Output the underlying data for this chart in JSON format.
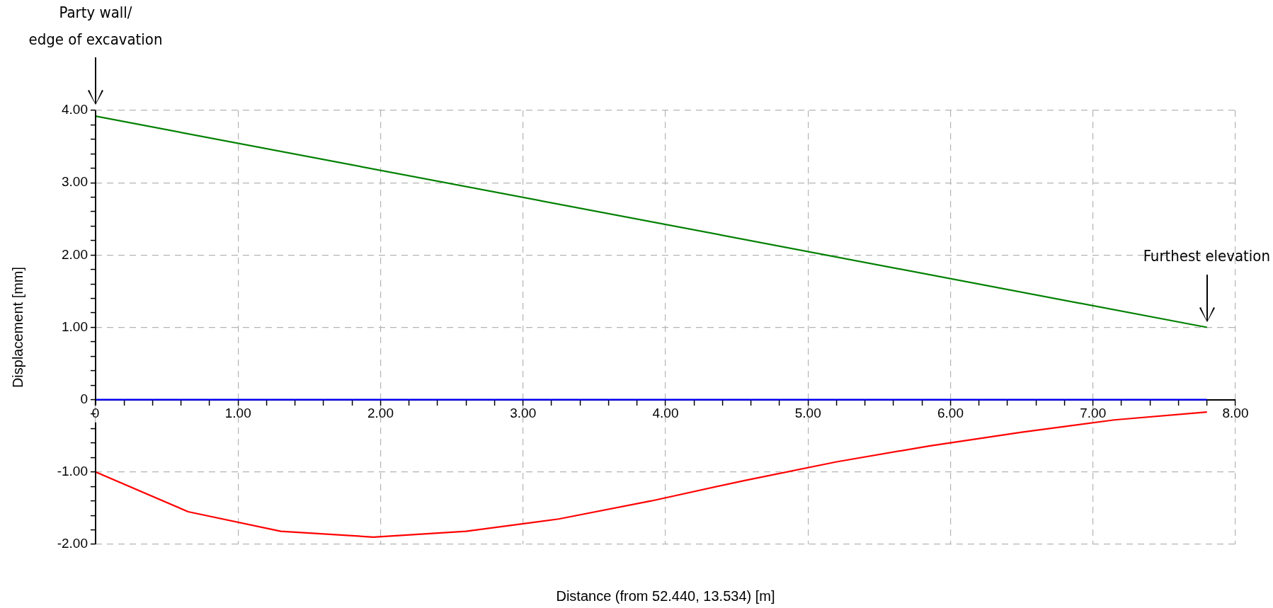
{
  "chart_data": {
    "type": "line",
    "xlabel": "Distance (from 52.440, 13.534) [m]",
    "ylabel": "Displacement [mm]",
    "xlim": [
      0,
      8
    ],
    "ylim": [
      -2,
      4
    ],
    "xticks": [
      {
        "value": 0,
        "label": "0"
      },
      {
        "value": 0.2,
        "label": null
      },
      {
        "value": 0.4,
        "label": null
      },
      {
        "value": 0.6,
        "label": null
      },
      {
        "value": 0.8,
        "label": null
      },
      {
        "value": 1,
        "label": "1.00"
      },
      {
        "value": 1.2,
        "label": null
      },
      {
        "value": 1.4,
        "label": null
      },
      {
        "value": 1.6,
        "label": null
      },
      {
        "value": 1.8,
        "label": null
      },
      {
        "value": 2,
        "label": "2.00"
      },
      {
        "value": 2.2,
        "label": null
      },
      {
        "value": 2.4,
        "label": null
      },
      {
        "value": 2.6,
        "label": null
      },
      {
        "value": 2.8,
        "label": null
      },
      {
        "value": 3,
        "label": "3.00"
      },
      {
        "value": 3.2,
        "label": null
      },
      {
        "value": 3.4,
        "label": null
      },
      {
        "value": 3.6,
        "label": null
      },
      {
        "value": 3.8,
        "label": null
      },
      {
        "value": 4,
        "label": "4.00"
      },
      {
        "value": 4.2,
        "label": null
      },
      {
        "value": 4.4,
        "label": null
      },
      {
        "value": 4.6,
        "label": null
      },
      {
        "value": 4.8,
        "label": null
      },
      {
        "value": 5,
        "label": "5.00"
      },
      {
        "value": 5.2,
        "label": null
      },
      {
        "value": 5.4,
        "label": null
      },
      {
        "value": 5.6,
        "label": null
      },
      {
        "value": 5.8,
        "label": null
      },
      {
        "value": 6,
        "label": "6.00"
      },
      {
        "value": 6.2,
        "label": null
      },
      {
        "value": 6.4,
        "label": null
      },
      {
        "value": 6.6,
        "label": null
      },
      {
        "value": 6.8,
        "label": null
      },
      {
        "value": 7,
        "label": "7.00"
      },
      {
        "value": 7.2,
        "label": null
      },
      {
        "value": 7.4,
        "label": null
      },
      {
        "value": 7.6,
        "label": null
      },
      {
        "value": 7.8,
        "label": null
      },
      {
        "value": 8,
        "label": "8.00"
      }
    ],
    "yticks": [
      {
        "value": -2,
        "label": "-2.00"
      },
      {
        "value": -1.8,
        "label": null
      },
      {
        "value": -1.6,
        "label": null
      },
      {
        "value": -1.4,
        "label": null
      },
      {
        "value": -1.2,
        "label": null
      },
      {
        "value": -1,
        "label": "-1.00"
      },
      {
        "value": -0.8,
        "label": null
      },
      {
        "value": -0.6,
        "label": null
      },
      {
        "value": -0.4,
        "label": null
      },
      {
        "value": -0.2,
        "label": null
      },
      0,
      {
        "value": 0.2,
        "label": null
      },
      {
        "value": 0.4,
        "label": null
      },
      {
        "value": 0.6,
        "label": null
      },
      {
        "value": 0.8,
        "label": null
      },
      {
        "value": 1,
        "label": "1.00"
      },
      {
        "value": 1.2,
        "label": null
      },
      {
        "value": 1.4,
        "label": null
      },
      {
        "value": 1.6,
        "label": null
      },
      {
        "value": 1.8,
        "label": null
      },
      {
        "value": 2,
        "label": "2.00"
      },
      {
        "value": 2.2,
        "label": null
      },
      {
        "value": 2.4,
        "label": null
      },
      {
        "value": 2.6,
        "label": null
      },
      {
        "value": 2.8,
        "label": null
      },
      {
        "value": 3,
        "label": "3.00"
      },
      {
        "value": 3.2,
        "label": null
      },
      {
        "value": 3.4,
        "label": null
      },
      {
        "value": 3.6,
        "label": null
      },
      {
        "value": 3.8,
        "label": null
      },
      {
        "value": 4,
        "label": "4.00"
      }
    ],
    "grid": true,
    "legend": false,
    "marker": "none",
    "line_style": "solid",
    "series": [
      {
        "color": "#008000",
        "x": [
          0,
          7.8
        ],
        "values": [
          3.92,
          1.0
        ]
      },
      {
        "color": "#0000ff",
        "x": [
          0,
          7.8
        ],
        "values": [
          0,
          0
        ]
      },
      {
        "color": "#ff0000",
        "x": [
          0,
          0.65,
          1.3,
          1.95,
          2.6,
          3.25,
          3.9,
          4.55,
          5.2,
          5.85,
          6.5,
          7.15,
          7.8
        ],
        "values": [
          -1.0,
          -1.55,
          -1.82,
          -1.9,
          -1.82,
          -1.65,
          -1.4,
          -1.12,
          -0.86,
          -0.64,
          -0.45,
          -0.28,
          -0.17
        ]
      }
    ],
    "annotations": [
      "Party wall/\nedge of excavation",
      "Furthest elevation"
    ]
  }
}
